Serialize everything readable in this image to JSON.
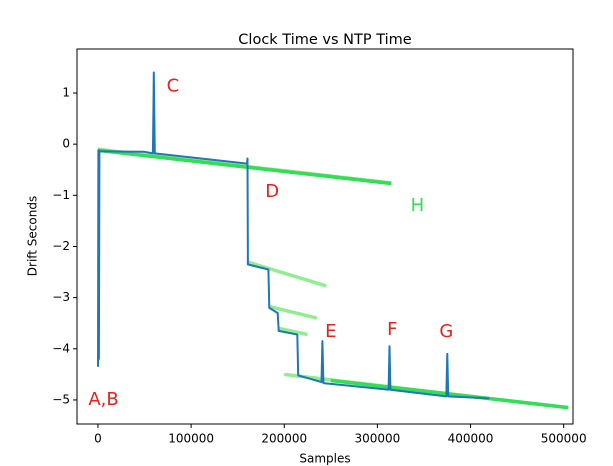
{
  "chart_data": {
    "type": "line",
    "title": "Clock Time vs NTP Time",
    "xlabel": "Samples",
    "ylabel": "Drift Seconds",
    "xlim": [
      -22500,
      510000
    ],
    "ylim": [
      -5.47,
      1.86
    ],
    "xticks": [
      0,
      100000,
      200000,
      300000,
      400000,
      500000
    ],
    "yticks": [
      1,
      0,
      {
        "value": -1,
        "label": "−1"
      },
      {
        "value": -2,
        "label": "−2"
      },
      {
        "value": -3,
        "label": "−3"
      },
      {
        "value": -4,
        "label": "−4"
      },
      {
        "value": -5,
        "label": "−5"
      }
    ],
    "series": [
      {
        "color": "#90ee90",
        "x": [
          0,
          315000
        ],
        "values": [
          -0.1,
          -0.76
        ]
      },
      {
        "color": "#90ee90",
        "x": [
          160000,
          245000
        ],
        "values": [
          -2.3,
          -2.77
        ]
      },
      {
        "color": "#90ee90",
        "x": [
          183000,
          235000
        ],
        "values": [
          -3.17,
          -3.4
        ]
      },
      {
        "color": "#90ee90",
        "x": [
          194000,
          225000
        ],
        "values": [
          -3.6,
          -3.72
        ]
      },
      {
        "color": "#90ee90",
        "x": [
          200000,
          505000
        ],
        "values": [
          -4.5,
          -5.15
        ]
      },
      {
        "color": "#33dd55",
        "x": [
          0,
          315000
        ],
        "values": [
          -0.12,
          -0.77
        ]
      },
      {
        "color": "#33dd55",
        "x": [
          250000,
          505000
        ],
        "values": [
          -4.62,
          -5.15
        ]
      },
      {
        "color": "#1f77b4",
        "x": [
          0,
          500,
          1000,
          1500,
          2000,
          50000,
          59000,
          59500,
          60000,
          60500,
          61000,
          160000,
          160500,
          161000,
          183000,
          184000,
          193000,
          194000,
          214000,
          215000,
          240000,
          241000,
          242000,
          312000,
          313000,
          314000,
          374000,
          375000,
          376000,
          420000
        ],
        "values": [
          -4.35,
          -0.12,
          -4.2,
          -0.13,
          -0.14,
          -0.15,
          -0.18,
          0.6,
          1.4,
          0.6,
          -0.18,
          -0.38,
          -0.28,
          -2.35,
          -2.45,
          -3.2,
          -3.3,
          -3.65,
          -3.72,
          -4.52,
          -4.65,
          -3.85,
          -4.67,
          -4.8,
          -3.95,
          -4.8,
          -4.93,
          -4.1,
          -4.93,
          -4.97
        ]
      }
    ],
    "annotations": [
      {
        "text": "A,B",
        "x": 6000,
        "y": -5.0,
        "color": "#e8211c"
      },
      {
        "text": "C",
        "x": 80500,
        "y": 1.13,
        "color": "#e8211c"
      },
      {
        "text": "D",
        "x": 187000,
        "y": -0.94,
        "color": "#e8211c"
      },
      {
        "text": "E",
        "x": 250000,
        "y": -3.67,
        "color": "#e8211c"
      },
      {
        "text": "F",
        "x": 316000,
        "y": -3.63,
        "color": "#e8211c"
      },
      {
        "text": "G",
        "x": 374000,
        "y": -3.67,
        "color": "#e8211c"
      },
      {
        "text": "H",
        "x": 343000,
        "y": -1.21,
        "color": "#33dd55"
      }
    ]
  }
}
